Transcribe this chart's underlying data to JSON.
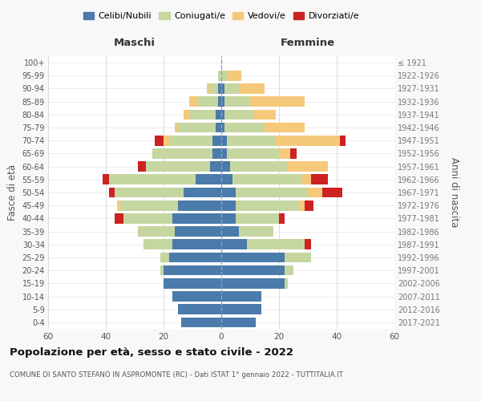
{
  "age_groups": [
    "0-4",
    "5-9",
    "10-14",
    "15-19",
    "20-24",
    "25-29",
    "30-34",
    "35-39",
    "40-44",
    "45-49",
    "50-54",
    "55-59",
    "60-64",
    "65-69",
    "70-74",
    "75-79",
    "80-84",
    "85-89",
    "90-94",
    "95-99",
    "100+"
  ],
  "birth_years": [
    "2017-2021",
    "2012-2016",
    "2007-2011",
    "2002-2006",
    "1997-2001",
    "1992-1996",
    "1987-1991",
    "1982-1986",
    "1977-1981",
    "1972-1976",
    "1967-1971",
    "1962-1966",
    "1957-1961",
    "1952-1956",
    "1947-1951",
    "1942-1946",
    "1937-1941",
    "1932-1936",
    "1927-1931",
    "1922-1926",
    "≤ 1921"
  ],
  "males": {
    "celibi": [
      14,
      15,
      17,
      20,
      20,
      18,
      17,
      16,
      17,
      15,
      13,
      9,
      4,
      3,
      3,
      2,
      2,
      1,
      1,
      0,
      0
    ],
    "coniugati": [
      0,
      0,
      0,
      0,
      1,
      3,
      10,
      13,
      17,
      20,
      24,
      30,
      22,
      21,
      15,
      13,
      9,
      7,
      3,
      1,
      0
    ],
    "vedovi": [
      0,
      0,
      0,
      0,
      0,
      0,
      0,
      0,
      0,
      1,
      0,
      0,
      0,
      0,
      2,
      1,
      2,
      3,
      1,
      0,
      0
    ],
    "divorziati": [
      0,
      0,
      0,
      0,
      0,
      0,
      0,
      0,
      3,
      0,
      2,
      2,
      3,
      0,
      3,
      0,
      0,
      0,
      0,
      0,
      0
    ]
  },
  "females": {
    "nubili": [
      12,
      14,
      14,
      22,
      22,
      22,
      9,
      6,
      5,
      5,
      5,
      4,
      3,
      2,
      2,
      1,
      1,
      1,
      1,
      0,
      0
    ],
    "coniugate": [
      0,
      0,
      0,
      1,
      3,
      9,
      20,
      12,
      15,
      22,
      25,
      24,
      20,
      18,
      17,
      14,
      10,
      9,
      5,
      2,
      0
    ],
    "vedove": [
      0,
      0,
      0,
      0,
      0,
      0,
      0,
      0,
      0,
      2,
      5,
      3,
      14,
      4,
      22,
      14,
      8,
      19,
      9,
      5,
      0
    ],
    "divorziate": [
      0,
      0,
      0,
      0,
      0,
      0,
      2,
      0,
      2,
      3,
      7,
      6,
      0,
      2,
      2,
      0,
      0,
      0,
      0,
      0,
      0
    ]
  },
  "colors": {
    "celibi": "#4a7baa",
    "coniugati": "#c5d6a0",
    "vedovi": "#f5c97a",
    "divorziati": "#cc2222"
  },
  "xlim": 60,
  "title": "Popolazione per età, sesso e stato civile - 2022",
  "subtitle": "COMUNE DI SANTO STEFANO IN ASPROMONTE (RC) - Dati ISTAT 1° gennaio 2022 - TUTTITALIA.IT",
  "xlabel_left": "Maschi",
  "xlabel_right": "Femmine",
  "ylabel_left": "Fasce di età",
  "ylabel_right": "Anni di nascita",
  "legend_labels": [
    "Celibi/Nubili",
    "Coniugati/e",
    "Vedovi/e",
    "Divorziati/e"
  ],
  "bg_color": "#f8f8f8",
  "plot_bg_color": "#ffffff"
}
